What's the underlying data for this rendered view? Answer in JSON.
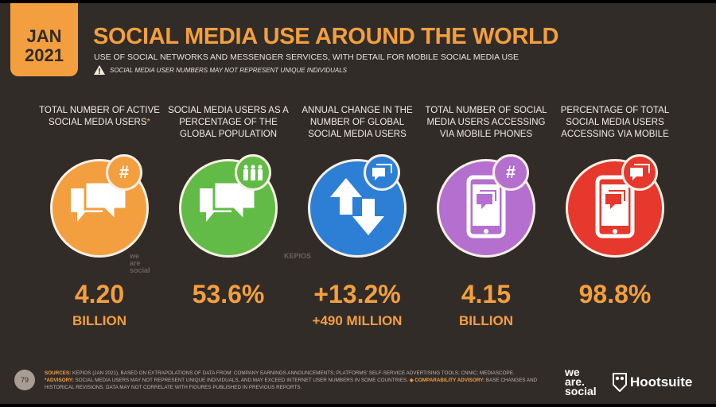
{
  "header": {
    "date_line1": "JAN",
    "date_line2": "2021",
    "title": "SOCIAL MEDIA USE AROUND THE WORLD",
    "subtitle": "USE OF SOCIAL NETWORKS AND MESSENGER SERVICES, WITH DETAIL FOR MOBILE SOCIAL MEDIA USE",
    "warning": "SOCIAL MEDIA USER NUMBERS MAY NOT REPRESENT UNIQUE INDIVIDUALS"
  },
  "stats": [
    {
      "heading": "TOTAL NUMBER OF ACTIVE SOCIAL MEDIA USERS",
      "marker": "*",
      "value": "4.20",
      "unit": "BILLION",
      "color": "#f39f3f",
      "icon": "chat-bubbles-icon",
      "badge": "hashtag-icon",
      "source": "we are social"
    },
    {
      "heading": "SOCIAL MEDIA USERS AS A PERCENTAGE OF THE GLOBAL POPULATION",
      "value": "53.6%",
      "unit": "",
      "color": "#62bb46",
      "icon": "chat-bubbles-icon",
      "badge": "people-icon",
      "source": "KEPIOS"
    },
    {
      "heading": "ANNUAL CHANGE IN THE NUMBER OF GLOBAL SOCIAL MEDIA USERS",
      "value": "+13.2%",
      "unit": "+490 MILLION",
      "color": "#2d7fd6",
      "icon": "up-down-arrows-icon",
      "badge": "chat-icon",
      "source": ""
    },
    {
      "heading": "TOTAL NUMBER OF SOCIAL MEDIA USERS ACCESSING VIA MOBILE PHONES",
      "value": "4.15",
      "unit": "BILLION",
      "color": "#b46fcf",
      "icon": "mobile-phone-icon",
      "badge": "hashtag-icon",
      "source": ""
    },
    {
      "heading": "PERCENTAGE OF TOTAL SOCIAL MEDIA USERS ACCESSING VIA MOBILE",
      "value": "98.8%",
      "unit": "",
      "color": "#e6382c",
      "icon": "mobile-phone-icon",
      "badge": "chat-icon",
      "source": ""
    }
  ],
  "footer": {
    "page": "79",
    "sources_label": "SOURCES:",
    "sources": "KEPIOS (JAN 2021), BASED ON EXTRAPOLATIONS OF DATA FROM: COMPANY EARNINGS ANNOUNCEMENTS; PLATFORMS' SELF-SERVICE ADVERTISING TOOLS; CNNIC; MEDIASCOPE.",
    "advisory_label": "*ADVISORY:",
    "advisory": "SOCIAL MEDIA USERS MAY NOT REPRESENT UNIQUE INDIVIDUALS, AND MAY EXCEED INTERNET USER NUMBERS IN SOME COUNTRIES.",
    "comparability_label": "◈ COMPARABILITY ADVISORY:",
    "comparability": "BASE CHANGES AND HISTORICAL REVISIONS. DATA MAY NOT CORRELATE WITH FIGURES PUBLISHED IN PREVIOUS REPORTS.",
    "logo1": "we are social",
    "logo2": "Hootsuite"
  }
}
